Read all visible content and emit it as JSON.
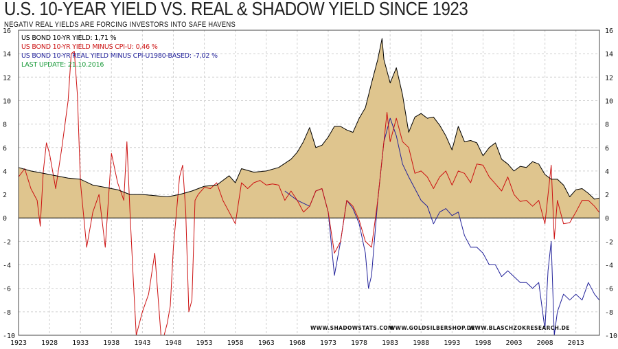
{
  "chart_data": {
    "type": "area",
    "title": "U.S. 10-YEAR YIELD  VS.  REAL & SHADOW  YIELD  SINCE  1923",
    "subtitle": "NEGATIV REAL YIELDS ARE FORCING INVESTORS INTO SAFE HAVENS",
    "xlim": [
      1923,
      2016.8
    ],
    "ylim": [
      -10,
      16
    ],
    "x_ticks": [
      1923,
      1928,
      1933,
      1938,
      1943,
      1948,
      1953,
      1958,
      1963,
      1968,
      1973,
      1978,
      1983,
      1988,
      1993,
      1998,
      2003,
      2008,
      2013
    ],
    "y_ticks": [
      -10,
      -8,
      -6,
      -4,
      -2,
      0,
      2,
      4,
      6,
      8,
      10,
      12,
      14,
      16
    ],
    "grid": true,
    "legend": [
      {
        "label": "US BOND 10-YR YIELD: 1,71 %",
        "color": "#000000"
      },
      {
        "label": "US BOND 10-YR YIELD MINUS CPI-U: 0,46 %",
        "color": "#cc1111"
      },
      {
        "label": "US BOND 10-YR REAL YIELD MINUS CPI-U1980-BASED: -7,02 %",
        "color": "#22229a"
      },
      {
        "label": "LAST UPDATE: 21.10.2016",
        "color": "#1a9a3a"
      }
    ],
    "credits": [
      "WWW.SHADOWSTATS.COM",
      "WWW.GOLDSILBERSHOP.DE",
      "WWW.BLASCHZOKRESEARCH.DE"
    ],
    "series": [
      {
        "name": "US Bond 10-Yr Yield",
        "color": "#000000",
        "fill": "#dfc58e",
        "x": [
          1923,
          1925,
          1927,
          1929,
          1931,
          1933,
          1935,
          1937,
          1939,
          1941,
          1943,
          1945,
          1947,
          1949,
          1951,
          1953,
          1955,
          1957,
          1958,
          1959,
          1961,
          1963,
          1965,
          1967,
          1968,
          1969,
          1970,
          1971,
          1972,
          1973,
          1974,
          1975,
          1976,
          1977,
          1978,
          1979,
          1980,
          1981,
          1981.7,
          1982,
          1983,
          1984,
          1985,
          1986,
          1987,
          1988,
          1989,
          1990,
          1991,
          1992,
          1993,
          1994,
          1995,
          1996,
          1997,
          1998,
          1999,
          2000,
          2001,
          2002,
          2003,
          2004,
          2005,
          2006,
          2007,
          2008,
          2009,
          2010,
          2011,
          2012,
          2013,
          2014,
          2015,
          2016,
          2016.8
        ],
        "values": [
          4.3,
          4.0,
          3.8,
          3.6,
          3.4,
          3.3,
          2.8,
          2.6,
          2.4,
          2.0,
          2.0,
          1.9,
          1.8,
          2.0,
          2.3,
          2.7,
          2.8,
          3.6,
          3.0,
          4.2,
          3.9,
          4.0,
          4.3,
          5.0,
          5.6,
          6.5,
          7.7,
          6.0,
          6.2,
          6.9,
          7.8,
          7.8,
          7.5,
          7.3,
          8.5,
          9.4,
          11.5,
          13.5,
          15.3,
          13.5,
          11.5,
          12.8,
          10.5,
          7.3,
          8.6,
          8.9,
          8.5,
          8.6,
          7.9,
          7.0,
          5.8,
          7.8,
          6.5,
          6.6,
          6.4,
          5.3,
          6.0,
          6.4,
          5.0,
          4.6,
          4.0,
          4.4,
          4.3,
          4.8,
          4.6,
          3.7,
          3.3,
          3.3,
          2.8,
          1.8,
          2.4,
          2.5,
          2.1,
          1.6,
          1.7
        ]
      },
      {
        "name": "US Bond 10-Yr Yield minus CPI-U",
        "color": "#cc1111",
        "x": [
          1923,
          1924,
          1925,
          1926,
          1926.5,
          1927,
          1927.5,
          1928,
          1929,
          1930,
          1931,
          1931.5,
          1932,
          1932.5,
          1933,
          1934,
          1935,
          1936,
          1937,
          1938,
          1939,
          1940,
          1940.5,
          1941,
          1941.5,
          1942,
          1943,
          1944,
          1945,
          1946,
          1946.5,
          1947,
          1947.5,
          1948,
          1949,
          1949.5,
          1950,
          1950.5,
          1951,
          1951.5,
          1952,
          1953,
          1954,
          1955,
          1956,
          1957,
          1958,
          1959,
          1960,
          1961,
          1962,
          1963,
          1964,
          1965,
          1966,
          1967,
          1968,
          1969,
          1970,
          1971,
          1972,
          1973,
          1974,
          1975,
          1976,
          1977,
          1978,
          1979,
          1980,
          1981,
          1982,
          1982.5,
          1983,
          1984,
          1985,
          1986,
          1987,
          1988,
          1989,
          1990,
          1991,
          1992,
          1993,
          1994,
          1995,
          1996,
          1997,
          1998,
          1999,
          2000,
          2001,
          2002,
          2003,
          2004,
          2005,
          2006,
          2007,
          2008,
          2009,
          2009.5,
          2010,
          2011,
          2012,
          2013,
          2014,
          2015,
          2016,
          2016.8
        ],
        "values": [
          3.5,
          4.2,
          2.5,
          1.5,
          -0.7,
          4.0,
          6.4,
          5.5,
          2.5,
          6.0,
          10.0,
          14.0,
          14.2,
          10.5,
          3.0,
          -2.5,
          0.5,
          2.0,
          -2.5,
          5.5,
          3.0,
          1.5,
          6.5,
          0.5,
          -5.0,
          -10.0,
          -8.0,
          -6.5,
          -3.0,
          -10.5,
          -10.0,
          -9.0,
          -7.5,
          -2.5,
          3.5,
          4.5,
          0.5,
          -8.0,
          -7.0,
          1.5,
          2.0,
          2.6,
          2.5,
          3.0,
          1.5,
          0.5,
          -0.5,
          3.0,
          2.5,
          3.0,
          3.2,
          2.8,
          2.9,
          2.8,
          1.5,
          2.3,
          1.5,
          0.5,
          1.0,
          2.3,
          2.5,
          0.5,
          -3.0,
          -2.0,
          1.5,
          1.0,
          -0.2,
          -2.0,
          -2.5,
          1.5,
          6.5,
          9.0,
          6.5,
          8.5,
          6.5,
          6.0,
          3.8,
          4.0,
          3.5,
          2.5,
          3.5,
          4.0,
          2.8,
          4.0,
          3.8,
          3.0,
          4.6,
          4.5,
          3.5,
          2.9,
          2.3,
          3.5,
          2.0,
          1.4,
          1.5,
          1.0,
          1.5,
          -0.5,
          4.5,
          -1.8,
          1.5,
          -0.5,
          -0.4,
          0.5,
          1.5,
          1.5,
          1.0,
          0.46
        ]
      },
      {
        "name": "US Bond 10-Yr Real Yield minus CPI-U 1980-based",
        "color": "#22229a",
        "x": [
          1966,
          1968,
          1970,
          1971,
          1972,
          1973,
          1974,
          1975,
          1976,
          1977,
          1978,
          1979,
          1979.5,
          1980,
          1981,
          1982,
          1983,
          1984,
          1985,
          1986,
          1987,
          1988,
          1989,
          1990,
          1991,
          1992,
          1993,
          1994,
          1995,
          1996,
          1997,
          1998,
          1999,
          2000,
          2001,
          2002,
          2003,
          2004,
          2005,
          2006,
          2007,
          2008,
          2008.5,
          2009,
          2009.5,
          2010,
          2011,
          2012,
          2013,
          2014,
          2015,
          2016,
          2016.8
        ],
        "values": [
          2.3,
          1.5,
          1.0,
          2.3,
          2.5,
          0.5,
          -4.9,
          -2.0,
          1.5,
          0.8,
          -0.5,
          -3.0,
          -6.0,
          -4.9,
          1.5,
          6.5,
          8.5,
          7.0,
          4.6,
          3.5,
          2.5,
          1.5,
          1.0,
          -0.5,
          0.5,
          0.8,
          0.2,
          0.5,
          -1.5,
          -2.5,
          -2.5,
          -3.0,
          -4.0,
          -4.0,
          -5.0,
          -4.5,
          -5.0,
          -5.5,
          -5.5,
          -6.0,
          -5.5,
          -9.5,
          -4.5,
          -2.0,
          -10.0,
          -8.0,
          -6.5,
          -7.0,
          -6.5,
          -7.0,
          -5.5,
          -6.5,
          -7.02
        ]
      }
    ]
  }
}
